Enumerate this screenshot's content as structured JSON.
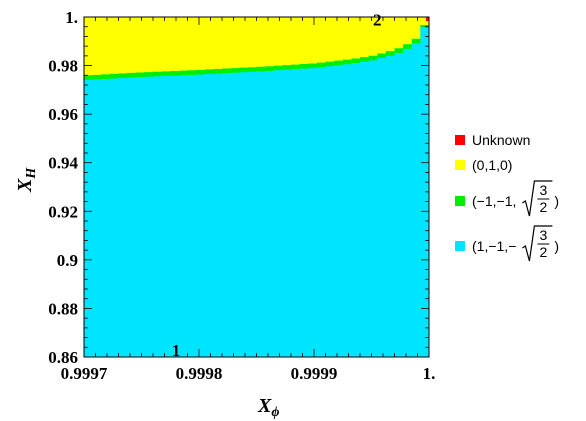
{
  "colors": {
    "unknown": "#ff0000",
    "p010": "#ffff00",
    "pm1": "#00ee00",
    "pp1": "#00e5ff",
    "axis": "#000000",
    "background": "#ffffff"
  },
  "chart_data": {
    "type": "heatmap",
    "xlabel_main": "X",
    "xlabel_sub": "ϕ",
    "ylabel_main": "X",
    "ylabel_sub": "H",
    "xlim": [
      0.9997,
      1.0
    ],
    "ylim": [
      0.86,
      1.0
    ],
    "xticks": [
      {
        "value": 0.9997,
        "label": "0.9997"
      },
      {
        "value": 0.9998,
        "label": "0.9998"
      },
      {
        "value": 0.9999,
        "label": "0.9999"
      },
      {
        "value": 1.0,
        "label": "1."
      }
    ],
    "yticks": [
      {
        "value": 0.86,
        "label": "0.86"
      },
      {
        "value": 0.88,
        "label": "0.88"
      },
      {
        "value": 0.9,
        "label": "0.9"
      },
      {
        "value": 0.92,
        "label": "0.92"
      },
      {
        "value": 0.94,
        "label": "0.94"
      },
      {
        "value": 0.96,
        "label": "0.96"
      },
      {
        "value": 0.98,
        "label": "0.98"
      },
      {
        "value": 1.0,
        "label": "1."
      }
    ],
    "regions": [
      {
        "key": "pp1",
        "legend": "(1,−1,−√(3/2))"
      },
      {
        "key": "pm1",
        "legend": "(−1,−1,√(3/2))"
      },
      {
        "key": "p010",
        "legend": "(0,1,0)"
      },
      {
        "key": "unknown",
        "legend": "Unknown"
      }
    ],
    "boundary_lower": {
      "x": [
        0.9997,
        0.99975,
        0.9998,
        0.99985,
        0.9999,
        0.99993,
        0.99995,
        0.99997,
        0.99998,
        0.99999,
        1.0
      ],
      "y": [
        0.974,
        0.9753,
        0.9763,
        0.9775,
        0.979,
        0.9806,
        0.982,
        0.9845,
        0.9865,
        0.9895,
        0.9995
      ]
    },
    "band_width": 0.0019,
    "annotations": [
      {
        "text": "1",
        "x": 0.99978,
        "y": 0.8605
      },
      {
        "text": "2",
        "x": 0.999955,
        "y": 0.9964
      }
    ],
    "legend": [
      {
        "key": "unknown",
        "text": "Unknown"
      },
      {
        "key": "p010",
        "text": "(0,1,0)"
      },
      {
        "key": "pm1",
        "prefix": "(−1,−1,",
        "frac_num": "3",
        "frac_den": "2",
        "suffix": ")"
      },
      {
        "key": "pp1",
        "prefix": "(1,−1,−",
        "frac_num": "3",
        "frac_den": "2",
        "suffix": ")"
      }
    ]
  }
}
